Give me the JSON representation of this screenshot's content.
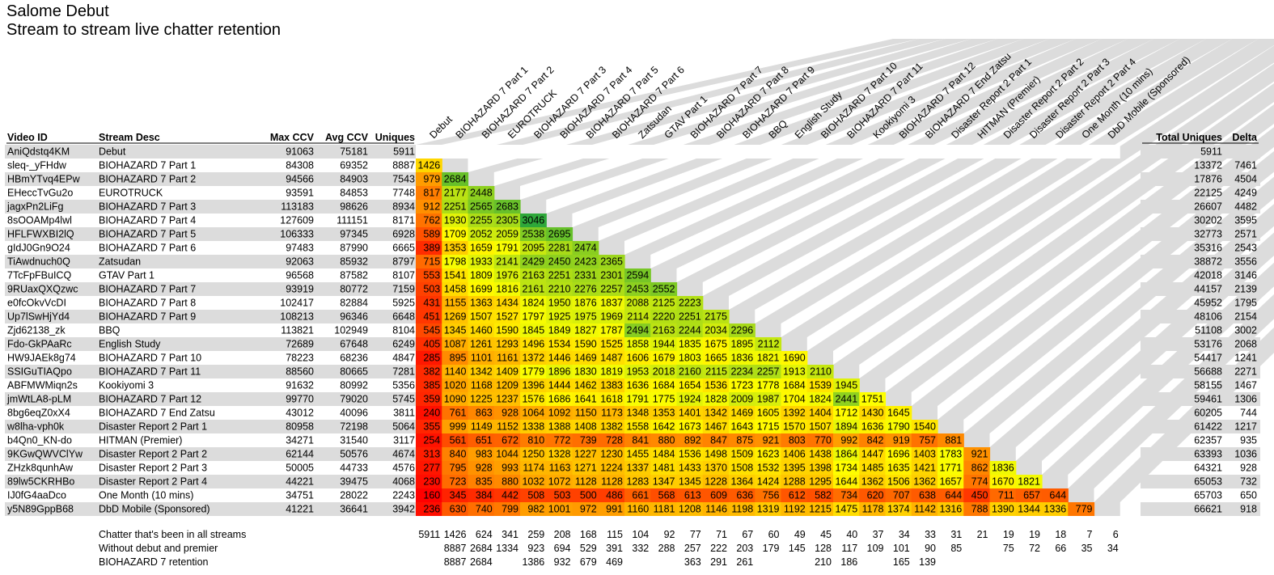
{
  "title": "Salome Debut",
  "subtitle": "Stream to stream live chatter retention",
  "colors": {
    "band": "#dcdcdc",
    "low": "#ff0000",
    "mid": "#ffff00",
    "high": "#2ea83a"
  },
  "table_headers": {
    "video_id": "Video ID",
    "stream_desc": "Stream Desc",
    "max_ccv": "Max CCV",
    "avg_ccv": "Avg CCV",
    "uniques": "Uniques",
    "total_uniques": "Total Uniques",
    "delta": "Delta"
  },
  "chart_data": {
    "type": "heatmap",
    "title": "Salome Debut",
    "subtitle": "Stream to stream live chatter retention",
    "columns": [
      "Debut",
      "BIOHAZARD 7 Part 1",
      "BIOHAZARD 7 Part 2",
      "EUROTRUCK",
      "BIOHAZARD 7 Part 3",
      "BIOHAZARD 7 Part 4",
      "BIOHAZARD 7 Part 5",
      "BIOHAZARD 7 Part 6",
      "Zatsudan",
      "GTAV Part 1",
      "BIOHAZARD 7 Part 7",
      "BIOHAZARD 7 Part 8",
      "BIOHAZARD 7 Part 9",
      "BBQ",
      "English Study",
      "BIOHAZARD 7 Part 10",
      "BIOHAZARD 7 Part 11",
      "Kookiyomi 3",
      "BIOHAZARD 7 Part 12",
      "BIOHAZARD 7 End Zatsu",
      "Disaster Report 2 Part 1",
      "HITMAN (Premier)",
      "Disaster Report 2 Part 2",
      "Disaster Report 2 Part 3",
      "Disaster Report 2 Part 4",
      "One Month (10 mins)",
      "DbD Mobile (Sponsored)"
    ],
    "rows": [
      {
        "id": "AniQdstq4KM",
        "desc": "Debut",
        "max": "91063",
        "avg": "75181",
        "uniq": "5911",
        "total": "5911",
        "delta": "",
        "cells": []
      },
      {
        "id": "sleq-_yFHdw",
        "desc": "BIOHAZARD 7 Part 1",
        "max": "84308",
        "avg": "69352",
        "uniq": "8887",
        "total": "13372",
        "delta": "7461",
        "cells": [
          1426
        ]
      },
      {
        "id": "HBmYTvq4EPw",
        "desc": "BIOHAZARD 7 Part 2",
        "max": "94566",
        "avg": "84903",
        "uniq": "7543",
        "total": "17876",
        "delta": "4504",
        "cells": [
          979,
          2684
        ]
      },
      {
        "id": "EHeccTvGu2o",
        "desc": "EUROTRUCK",
        "max": "93591",
        "avg": "84853",
        "uniq": "7748",
        "total": "22125",
        "delta": "4249",
        "cells": [
          817,
          2177,
          2448
        ]
      },
      {
        "id": "jagxPn2LiFg",
        "desc": "BIOHAZARD 7 Part 3",
        "max": "113183",
        "avg": "98626",
        "uniq": "8934",
        "total": "26607",
        "delta": "4482",
        "cells": [
          912,
          2251,
          2565,
          2683
        ]
      },
      {
        "id": "8sOOAMp4lwl",
        "desc": "BIOHAZARD 7 Part 4",
        "max": "127609",
        "avg": "111151",
        "uniq": "8171",
        "total": "30202",
        "delta": "3595",
        "cells": [
          762,
          1930,
          2255,
          2305,
          3046
        ]
      },
      {
        "id": "HFLFWXBI2lQ",
        "desc": "BIOHAZARD 7 Part 5",
        "max": "106333",
        "avg": "97345",
        "uniq": "6928",
        "total": "32773",
        "delta": "2571",
        "cells": [
          589,
          1709,
          2052,
          2059,
          2538,
          2695
        ]
      },
      {
        "id": "gIdJ0Gn9O24",
        "desc": "BIOHAZARD 7 Part 6",
        "max": "97483",
        "avg": "87990",
        "uniq": "6665",
        "total": "35316",
        "delta": "2543",
        "cells": [
          389,
          1353,
          1659,
          1791,
          2095,
          2281,
          2474
        ]
      },
      {
        "id": "TiAwdnuch0Q",
        "desc": "Zatsudan",
        "max": "92063",
        "avg": "85932",
        "uniq": "8797",
        "total": "38872",
        "delta": "3556",
        "cells": [
          715,
          1798,
          1933,
          2141,
          2429,
          2450,
          2423,
          2365
        ]
      },
      {
        "id": "7TcFpFBuICQ",
        "desc": "GTAV Part 1",
        "max": "96568",
        "avg": "87582",
        "uniq": "8107",
        "total": "42018",
        "delta": "3146",
        "cells": [
          553,
          1541,
          1809,
          1976,
          2163,
          2251,
          2331,
          2301,
          2594
        ]
      },
      {
        "id": "9RUaxQXQzwc",
        "desc": "BIOHAZARD 7 Part 7",
        "max": "93919",
        "avg": "80772",
        "uniq": "7159",
        "total": "44157",
        "delta": "2139",
        "cells": [
          503,
          1458,
          1699,
          1816,
          2161,
          2210,
          2276,
          2257,
          2453,
          2552
        ]
      },
      {
        "id": "e0fcOkvVcDI",
        "desc": "BIOHAZARD 7 Part 8",
        "max": "102417",
        "avg": "82884",
        "uniq": "5925",
        "total": "45952",
        "delta": "1795",
        "cells": [
          431,
          1155,
          1363,
          1434,
          1824,
          1950,
          1876,
          1837,
          2088,
          2125,
          2223
        ]
      },
      {
        "id": "Up7lSwHjYd4",
        "desc": "BIOHAZARD 7 Part 9",
        "max": "108213",
        "avg": "96346",
        "uniq": "6648",
        "total": "48106",
        "delta": "2154",
        "cells": [
          451,
          1269,
          1507,
          1527,
          1797,
          1925,
          1975,
          1969,
          2114,
          2220,
          2251,
          2175
        ]
      },
      {
        "id": "Zjd62138_zk",
        "desc": "BBQ",
        "max": "113821",
        "avg": "102949",
        "uniq": "8104",
        "total": "51108",
        "delta": "3002",
        "cells": [
          545,
          1345,
          1460,
          1590,
          1845,
          1849,
          1827,
          1787,
          2494,
          2163,
          2244,
          2034,
          2296
        ]
      },
      {
        "id": "Fdo-GkPAaRc",
        "desc": "English Study",
        "max": "72689",
        "avg": "67648",
        "uniq": "6249",
        "total": "53176",
        "delta": "2068",
        "cells": [
          405,
          1087,
          1261,
          1293,
          1496,
          1534,
          1590,
          1525,
          1858,
          1944,
          1835,
          1675,
          1895,
          2112
        ]
      },
      {
        "id": "HW9JAEk8g74",
        "desc": "BIOHAZARD 7 Part 10",
        "max": "78223",
        "avg": "68236",
        "uniq": "4847",
        "total": "54417",
        "delta": "1241",
        "cells": [
          285,
          895,
          1101,
          1161,
          1372,
          1446,
          1469,
          1487,
          1606,
          1679,
          1803,
          1665,
          1836,
          1821,
          1690
        ]
      },
      {
        "id": "SSIGuTIAQpo",
        "desc": "BIOHAZARD 7 Part 11",
        "max": "88560",
        "avg": "80665",
        "uniq": "7281",
        "total": "56688",
        "delta": "2271",
        "cells": [
          382,
          1140,
          1342,
          1409,
          1779,
          1896,
          1830,
          1819,
          1953,
          2018,
          2160,
          2115,
          2234,
          2257,
          1913,
          2110
        ]
      },
      {
        "id": "ABFMWMiqn2s",
        "desc": "Kookiyomi 3",
        "max": "91632",
        "avg": "80992",
        "uniq": "5356",
        "total": "58155",
        "delta": "1467",
        "cells": [
          385,
          1020,
          1168,
          1209,
          1396,
          1444,
          1462,
          1383,
          1636,
          1684,
          1654,
          1536,
          1723,
          1778,
          1684,
          1539,
          1945
        ]
      },
      {
        "id": "jmWtLA8-pLM",
        "desc": "BIOHAZARD 7 Part 12",
        "max": "99770",
        "avg": "79020",
        "uniq": "5745",
        "total": "59461",
        "delta": "1306",
        "cells": [
          359,
          1090,
          1225,
          1237,
          1576,
          1686,
          1641,
          1618,
          1791,
          1775,
          1924,
          1828,
          2009,
          1987,
          1704,
          1824,
          2441,
          1751
        ]
      },
      {
        "id": "8bg6eqZ0xX4",
        "desc": "BIOHAZARD 7 End Zatsu",
        "max": "43012",
        "avg": "40096",
        "uniq": "3811",
        "total": "60205",
        "delta": "744",
        "cells": [
          240,
          761,
          863,
          928,
          1064,
          1092,
          1150,
          1173,
          1348,
          1353,
          1401,
          1342,
          1469,
          1605,
          1392,
          1404,
          1712,
          1430,
          1645
        ]
      },
      {
        "id": "w8lha-vph0k",
        "desc": "Disaster Report 2 Part 1",
        "max": "80958",
        "avg": "72198",
        "uniq": "5064",
        "total": "61422",
        "delta": "1217",
        "cells": [
          355,
          999,
          1149,
          1152,
          1338,
          1388,
          1408,
          1382,
          1558,
          1642,
          1673,
          1467,
          1643,
          1715,
          1570,
          1507,
          1894,
          1636,
          1790,
          1540
        ]
      },
      {
        "id": "b4Qn0_KN-do",
        "desc": "HITMAN (Premier)",
        "max": "34271",
        "avg": "31540",
        "uniq": "3117",
        "total": "62357",
        "delta": "935",
        "cells": [
          254,
          561,
          651,
          672,
          810,
          772,
          739,
          728,
          841,
          880,
          892,
          847,
          875,
          921,
          803,
          770,
          992,
          842,
          919,
          757,
          881
        ]
      },
      {
        "id": "9KGwQWVClYw",
        "desc": "Disaster Report 2 Part 2",
        "max": "62144",
        "avg": "50576",
        "uniq": "4674",
        "total": "63393",
        "delta": "1036",
        "cells": [
          313,
          840,
          983,
          1044,
          1250,
          1328,
          1227,
          1230,
          1455,
          1484,
          1536,
          1498,
          1509,
          1623,
          1406,
          1438,
          1864,
          1447,
          1696,
          1403,
          1783,
          921
        ]
      },
      {
        "id": "ZHzk8qunhAw",
        "desc": "Disaster Report 2 Part 3",
        "max": "50005",
        "avg": "44733",
        "uniq": "4576",
        "total": "64321",
        "delta": "928",
        "cells": [
          277,
          795,
          928,
          993,
          1174,
          1163,
          1271,
          1224,
          1337,
          1481,
          1433,
          1370,
          1508,
          1532,
          1395,
          1398,
          1734,
          1485,
          1635,
          1421,
          1771,
          862,
          1836
        ]
      },
      {
        "id": "89lw5CKRHBo",
        "desc": "Disaster Report 2 Part 4",
        "max": "44221",
        "avg": "39475",
        "uniq": "4068",
        "total": "65053",
        "delta": "732",
        "cells": [
          230,
          723,
          835,
          880,
          1032,
          1072,
          1128,
          1128,
          1283,
          1347,
          1345,
          1228,
          1364,
          1424,
          1288,
          1295,
          1644,
          1362,
          1506,
          1362,
          1657,
          774,
          1670,
          1821
        ]
      },
      {
        "id": "IJ0fG4aaDco",
        "desc": "One Month (10 mins)",
        "max": "34751",
        "avg": "28022",
        "uniq": "2243",
        "total": "65703",
        "delta": "650",
        "cells": [
          160,
          345,
          384,
          442,
          508,
          503,
          500,
          486,
          661,
          568,
          613,
          609,
          636,
          756,
          612,
          582,
          734,
          620,
          707,
          638,
          644,
          450,
          711,
          657,
          644
        ]
      },
      {
        "id": "y5N89GppB68",
        "desc": "DbD Mobile (Sponsored)",
        "max": "41221",
        "avg": "36641",
        "uniq": "3942",
        "total": "66621",
        "delta": "918",
        "cells": [
          236,
          630,
          740,
          799,
          982,
          1001,
          972,
          991,
          1160,
          1181,
          1208,
          1146,
          1198,
          1319,
          1192,
          1215,
          1475,
          1178,
          1374,
          1142,
          1316,
          788,
          1390,
          1344,
          1336,
          779
        ]
      }
    ],
    "footer_rows": [
      {
        "label": "Chatter that's been in all streams",
        "values": [
          "5911",
          "1426",
          "624",
          "341",
          "259",
          "208",
          "168",
          "115",
          "104",
          "92",
          "77",
          "71",
          "67",
          "60",
          "49",
          "45",
          "40",
          "37",
          "34",
          "33",
          "31",
          "21",
          "19",
          "19",
          "18",
          "7",
          "6"
        ]
      },
      {
        "label": "Without debut and premier",
        "values": [
          "",
          "8887",
          "2684",
          "1334",
          "923",
          "694",
          "529",
          "391",
          "332",
          "288",
          "257",
          "222",
          "203",
          "179",
          "145",
          "128",
          "117",
          "109",
          "101",
          "90",
          "85",
          "",
          "75",
          "72",
          "66",
          "35",
          "34"
        ]
      },
      {
        "label": "BIOHAZARD 7 retention",
        "values": [
          "",
          "8887",
          "2684",
          "",
          "1386",
          "932",
          "679",
          "469",
          "",
          "",
          "363",
          "291",
          "261",
          "",
          "",
          "210",
          "186",
          "",
          "165",
          "139",
          "",
          "",
          "",
          "",
          "",
          "",
          ""
        ]
      }
    ]
  }
}
